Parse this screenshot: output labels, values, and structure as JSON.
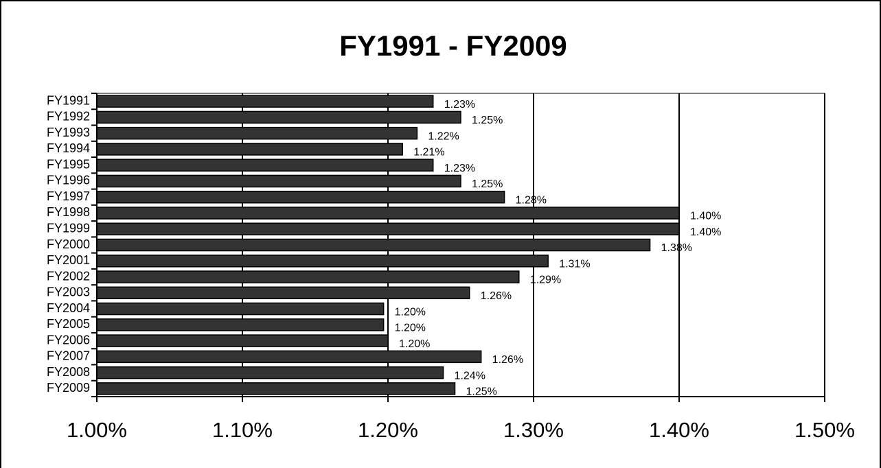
{
  "chart_data": {
    "type": "hbar",
    "title": "FY1991 - FY2009",
    "categories": [
      "FY1991",
      "FY1992",
      "FY1993",
      "FY1994",
      "FY1995",
      "FY1996",
      "FY1997",
      "FY1998",
      "FY1999",
      "FY2000",
      "FY2001",
      "FY2002",
      "FY2003",
      "FY2004",
      "FY2005",
      "FY2006",
      "FY2007",
      "FY2008",
      "FY2009"
    ],
    "values": [
      1.231,
      1.25,
      1.22,
      1.21,
      1.231,
      1.25,
      1.28,
      1.4,
      1.4,
      1.38,
      1.31,
      1.29,
      1.256,
      1.197,
      1.197,
      1.2,
      1.264,
      1.238,
      1.246
    ],
    "value_labels": [
      "1.23%",
      "1.25%",
      "1.22%",
      "1.21%",
      "1.23%",
      "1.25%",
      "1.28%",
      "1.40%",
      "1.40%",
      "1.38%",
      "1.31%",
      "1.29%",
      "1.26%",
      "1.20%",
      "1.20%",
      "1.20%",
      "1.26%",
      "1.24%",
      "1.25%"
    ],
    "color": "#333333",
    "xlim": [
      1.0,
      1.5
    ],
    "xticks": [
      {
        "value": 1.0,
        "label": "1.00%"
      },
      {
        "value": 1.1,
        "label": "1.10%"
      },
      {
        "value": 1.2,
        "label": "1.20%"
      },
      {
        "value": 1.3,
        "label": "1.30%"
      },
      {
        "value": 1.4,
        "label": "1.40%"
      },
      {
        "value": 1.5,
        "label": "1.50%"
      }
    ],
    "grid": true
  }
}
